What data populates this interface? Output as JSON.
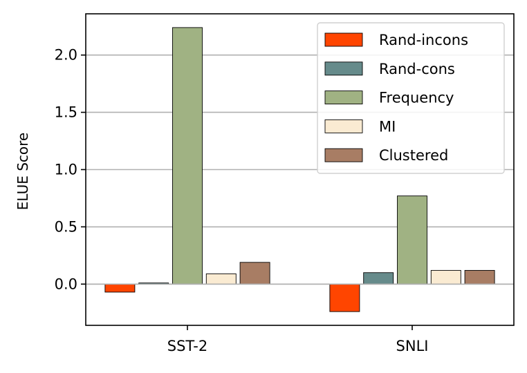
{
  "chart_data": {
    "type": "bar",
    "title": "",
    "xlabel": "",
    "ylabel": "ELUE Score",
    "categories": [
      "SST-2",
      "SNLI"
    ],
    "series": [
      {
        "name": "Rand-incons",
        "color": "#ff4500",
        "values": [
          -0.07,
          -0.24
        ]
      },
      {
        "name": "Rand-cons",
        "color": "#668b8b",
        "values": [
          0.01,
          0.1
        ]
      },
      {
        "name": "Frequency",
        "color": "#a0b283",
        "values": [
          2.24,
          0.77
        ]
      },
      {
        "name": "MI",
        "color": "#faebd2",
        "values": [
          0.09,
          0.12
        ]
      },
      {
        "name": "Clustered",
        "color": "#a87d64",
        "values": [
          0.19,
          0.12
        ]
      }
    ],
    "ylim": [
      -0.36,
      2.36
    ],
    "yticks": [
      0.0,
      0.5,
      1.0,
      1.5,
      2.0
    ],
    "ytick_labels": [
      "0.0",
      "0.5",
      "1.0",
      "1.5",
      "2.0"
    ],
    "grid": "horizontal",
    "legend_position": "top-right"
  }
}
